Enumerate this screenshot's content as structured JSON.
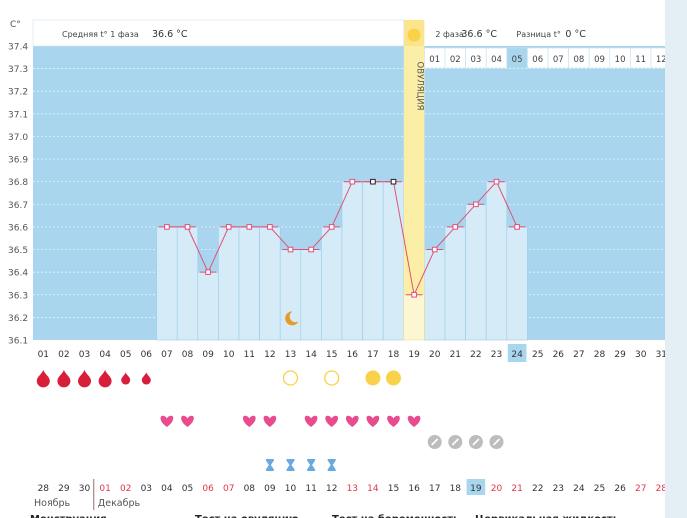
{
  "chart_data": {
    "type": "line",
    "title": "",
    "ylabel": "C°",
    "ylim": [
      36.1,
      37.4
    ],
    "y_ticks": [
      "37.4",
      "37.3",
      "37.2",
      "37.1",
      "37.0",
      "36.9",
      "36.8",
      "36.7",
      "36.6",
      "36.5",
      "36.4",
      "36.3",
      "36.2",
      "36.1"
    ],
    "phase1_label": "Средняя t° 1 фаза",
    "phase1_value": "36.6 °C",
    "phase2_label": "2 фаза",
    "phase2_value": "36.6 °C",
    "diff_label": "Разница t°",
    "diff_value": "0 °C",
    "ovulation_label": "ОВУЛЯЦИЯ",
    "ovulation_day": 19,
    "cycle_day_labels": [
      "01",
      "02",
      "03",
      "04",
      "05",
      "06",
      "07",
      "08",
      "09",
      "10",
      "11",
      "12"
    ],
    "cycle_start_day": 20,
    "highlight_cycle_day": "05",
    "days": [
      "01",
      "02",
      "03",
      "04",
      "05",
      "06",
      "07",
      "08",
      "09",
      "10",
      "11",
      "12",
      "13",
      "14",
      "15",
      "16",
      "17",
      "18",
      "19",
      "20",
      "21",
      "22",
      "23",
      "24",
      "25",
      "26",
      "27",
      "28",
      "29",
      "30",
      "31"
    ],
    "highlight_day": "24",
    "series": [
      {
        "x": [
          7,
          8,
          9,
          10,
          11,
          12,
          13,
          14,
          15,
          16,
          17,
          18,
          19,
          20,
          21,
          22,
          23,
          24
        ],
        "values": [
          36.6,
          36.6,
          36.4,
          36.6,
          36.6,
          36.6,
          36.5,
          36.5,
          36.6,
          36.8,
          36.8,
          36.8,
          36.3,
          36.5,
          36.6,
          36.7,
          36.8,
          36.6
        ]
      }
    ],
    "black_markers": [
      17,
      18
    ],
    "menstruation_days": [
      1,
      2,
      3,
      4,
      5,
      6
    ],
    "menstruation_large": [
      1,
      2,
      3,
      4
    ],
    "ovulation_test_empty": [
      13,
      15
    ],
    "ovulation_test_filled": [
      17,
      18
    ],
    "moon_day": 13,
    "heart_days": [
      7,
      8,
      11,
      12,
      14,
      15,
      16,
      17,
      18,
      19
    ],
    "pregnancy_test_days": [
      20,
      21,
      22,
      23
    ],
    "hourglass_days": [
      12,
      13,
      14,
      15
    ],
    "prev_dates": [
      "28",
      "29",
      "30",
      "01",
      "02",
      "03",
      "04",
      "05",
      "06",
      "07",
      "08",
      "09",
      "10",
      "11",
      "12",
      "13",
      "14",
      "15",
      "16",
      "17",
      "18",
      "19",
      "20",
      "21",
      "22",
      "23",
      "24",
      "25",
      "26",
      "27",
      "28"
    ],
    "red_date_positions": [
      3,
      4,
      8,
      9,
      15,
      16,
      22,
      23,
      29,
      30
    ],
    "highlight_date_position": 21,
    "month_prev": "Ноябрь",
    "month_next": "Декабрь",
    "footer_labels": [
      "Менструация",
      "Тест на овуляцию",
      "Тест на беременность",
      "Цервикальная жидкость"
    ],
    "colors": {
      "chart_bg": "#a9d6ee",
      "bar_fill": "#d5ecf8",
      "line": "#e0507a",
      "ovulation_band": "#fbeea6",
      "ovulation_header": "#fbe58c",
      "highlight": "#a8d6ee",
      "blood": "#d81f3a",
      "heart": "#e94b8f",
      "gold": "#f9d249",
      "grey_pill": "#bdbdbd",
      "hourglass": "#6aa9df",
      "red_date": "#e2354b",
      "moon": "#e69a2a"
    }
  }
}
